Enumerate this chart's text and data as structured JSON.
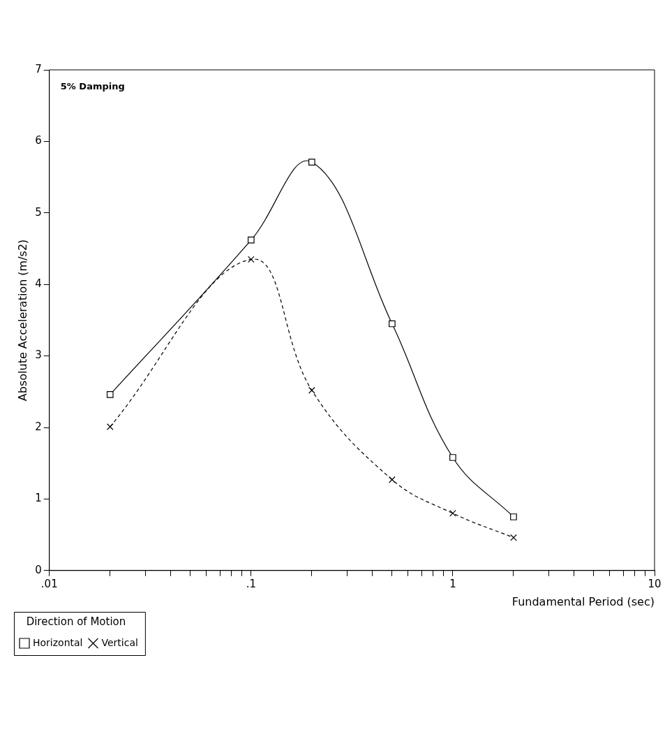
{
  "chart_data": {
    "type": "line",
    "xlabel": "Fundamental Period (sec)",
    "ylabel": "Absolute Acceleration (m/s2)",
    "legend_title": "Direction of Motion",
    "legend": "bottom left",
    "grid": false,
    "log": "x",
    "annotations": [
      "5% Damping"
    ],
    "x": [
      0.02,
      0.1,
      0.2,
      0.5,
      1,
      2
    ],
    "xlim": [
      0.01,
      10
    ],
    "xticks": [
      {
        "value": 0.01,
        "label": ".01"
      },
      {
        "value": 0.02,
        "label": null
      },
      {
        "value": 0.03,
        "label": null
      },
      {
        "value": 0.04,
        "label": null
      },
      {
        "value": 0.05,
        "label": null
      },
      {
        "value": 0.06,
        "label": null
      },
      {
        "value": 0.07,
        "label": null
      },
      {
        "value": 0.08,
        "label": null
      },
      {
        "value": 0.09,
        "label": null
      },
      {
        "value": 0.1,
        "label": ".1"
      },
      {
        "value": 0.2,
        "label": null
      },
      {
        "value": 0.3,
        "label": null
      },
      {
        "value": 0.4,
        "label": null
      },
      {
        "value": 0.5,
        "label": null
      },
      {
        "value": 0.6,
        "label": null
      },
      {
        "value": 0.7,
        "label": null
      },
      {
        "value": 0.8,
        "label": null
      },
      {
        "value": 0.9,
        "label": null
      },
      1,
      {
        "value": 2,
        "label": null
      },
      {
        "value": 3,
        "label": null
      },
      {
        "value": 4,
        "label": null
      },
      {
        "value": 5,
        "label": null
      },
      {
        "value": 6,
        "label": null
      },
      {
        "value": 7,
        "label": null
      },
      {
        "value": 8,
        "label": null
      },
      {
        "value": 9,
        "label": null
      },
      10
    ],
    "ylim": [
      0,
      7
    ],
    "yticks": [
      0,
      1,
      2,
      3,
      4,
      5,
      6,
      7
    ],
    "series": [
      {
        "name": "Horizontal",
        "color": "#000000",
        "marker": "square",
        "line_style": "solid",
        "values": [
          2.46,
          4.62,
          5.71,
          3.45,
          1.58,
          0.75
        ]
      },
      {
        "name": "Vertical",
        "color": "#000000",
        "marker": "cross",
        "line_style": "dashed",
        "values": [
          2.01,
          4.35,
          2.52,
          1.27,
          0.8,
          0.46
        ]
      }
    ]
  }
}
